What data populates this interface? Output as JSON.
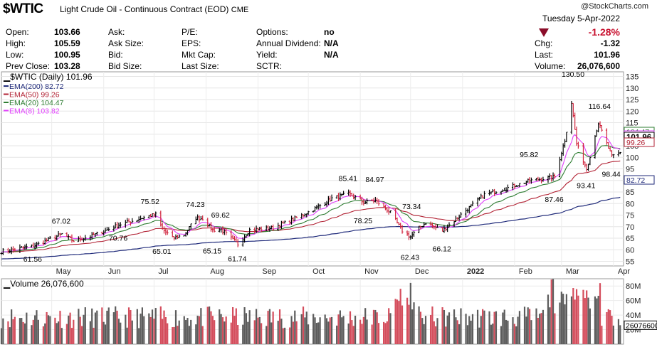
{
  "header": {
    "symbol": "$WTIC",
    "description": "Light Crude Oil - Continuous Contract (EOD)",
    "exchange": "CME",
    "source": "@StockCharts.com",
    "date": "Tuesday  5-Apr-2022",
    "pct_change": "-1.28%",
    "colors": {
      "down": "#c8102e",
      "triangle": "#8b0d2a"
    }
  },
  "quote": {
    "col1": [
      {
        "label": "Open:",
        "value": "103.66"
      },
      {
        "label": "High:",
        "value": "105.59"
      },
      {
        "label": "Low:",
        "value": "100.95"
      },
      {
        "label": "Prev Close:",
        "value": "103.28"
      }
    ],
    "col2": [
      {
        "label": "Ask:"
      },
      {
        "label": "Ask Size:"
      },
      {
        "label": "Bid:"
      },
      {
        "label": "Bid Size:"
      }
    ],
    "col3": [
      {
        "label": "P/E:"
      },
      {
        "label": "EPS:"
      },
      {
        "label": "Mkt Cap:"
      },
      {
        "label": "Last Size:"
      }
    ],
    "col4": [
      {
        "label": "Options:",
        "value": "no"
      },
      {
        "label": "Annual Dividend:",
        "value": "N/A"
      },
      {
        "label": "Yield:",
        "value": "N/A"
      },
      {
        "label": "SCTR:",
        "value": ""
      }
    ],
    "col5": [
      {
        "label": "Chg:",
        "value": "-1.32"
      },
      {
        "label": "Last:",
        "value": "101.96"
      },
      {
        "label": "Volume:",
        "value": "26,076,600"
      }
    ]
  },
  "chart_data": [
    {
      "type": "line",
      "title": "$WTIC (Daily) 101.96",
      "x_ticks": [
        "May",
        "Jun",
        "Jul",
        "Aug",
        "Sep",
        "Oct",
        "Nov",
        "Dec",
        "2022",
        "Feb",
        "Mar",
        "Apr"
      ],
      "y_ticks": [
        55,
        60,
        65,
        70,
        75,
        80,
        85,
        90,
        95,
        100,
        105,
        110,
        115,
        120,
        125,
        130,
        135
      ],
      "ylim": [
        53,
        137
      ],
      "legend": [
        {
          "label": "EMA(200) 82.72",
          "color": "#1f2a7a"
        },
        {
          "label": "EMA(50) 99.26",
          "color": "#b22234"
        },
        {
          "label": "EMA(20) 104.47",
          "color": "#2e7d32"
        },
        {
          "label": "EMA(8) 103.82",
          "color": "#e040fb"
        }
      ],
      "price_labels": [
        {
          "x": "2021-04-20",
          "y": 61.56,
          "text": "61.56"
        },
        {
          "x": "2021-05-07",
          "y": 67.02,
          "text": "67.02"
        },
        {
          "x": "2021-06-10",
          "y": 70.76,
          "text": "70.76"
        },
        {
          "x": "2021-06-29",
          "y": 75.52,
          "text": "75.52"
        },
        {
          "x": "2021-07-06",
          "y": 65.01,
          "text": "65.01"
        },
        {
          "x": "2021-07-26",
          "y": 74.23,
          "text": "74.23"
        },
        {
          "x": "2021-08-05",
          "y": 65.15,
          "text": "65.15"
        },
        {
          "x": "2021-08-10",
          "y": 69.62,
          "text": "69.62"
        },
        {
          "x": "2021-08-20",
          "y": 61.74,
          "text": "61.74"
        },
        {
          "x": "2021-10-25",
          "y": 85.41,
          "text": "85.41"
        },
        {
          "x": "2021-11-03",
          "y": 78.25,
          "text": "78.25"
        },
        {
          "x": "2021-11-10",
          "y": 84.97,
          "text": "84.97"
        },
        {
          "x": "2021-12-01",
          "y": 62.43,
          "text": "62.43"
        },
        {
          "x": "2021-12-02",
          "y": 73.34,
          "text": "73.34"
        },
        {
          "x": "2021-12-20",
          "y": 66.12,
          "text": "66.12"
        },
        {
          "x": "2022-02-10",
          "y": 95.82,
          "text": "95.82"
        },
        {
          "x": "2022-02-25",
          "y": 87.46,
          "text": "87.46"
        },
        {
          "x": "2022-03-07",
          "y": 130.5,
          "text": "130.50"
        },
        {
          "x": "2022-03-16",
          "y": 93.41,
          "text": "93.41"
        },
        {
          "x": "2022-03-23",
          "y": 116.64,
          "text": "116.64"
        },
        {
          "x": "2022-03-31",
          "y": 98.44,
          "text": "98.44"
        }
      ],
      "right_tags": [
        {
          "text": "104.47",
          "y": 104.47,
          "color": "#2e7d32"
        },
        {
          "text": "103.82",
          "y": 103.82,
          "color": "#e040fb"
        },
        {
          "text": "101.96",
          "y": 101.96,
          "color": "#000000"
        },
        {
          "text": "99.26",
          "y": 99.26,
          "color": "#b22234"
        },
        {
          "text": "82.72",
          "y": 82.72,
          "color": "#1f2a7a"
        }
      ]
    },
    {
      "type": "bar",
      "title": "Volume 26,076,600",
      "y_ticks": [
        "20M",
        "40M",
        "60M",
        "80M"
      ],
      "ylim": [
        0,
        90
      ],
      "last_tag": "26076600",
      "colors": {
        "up": "#5c5c5c",
        "down": "#d44d5c"
      }
    }
  ]
}
